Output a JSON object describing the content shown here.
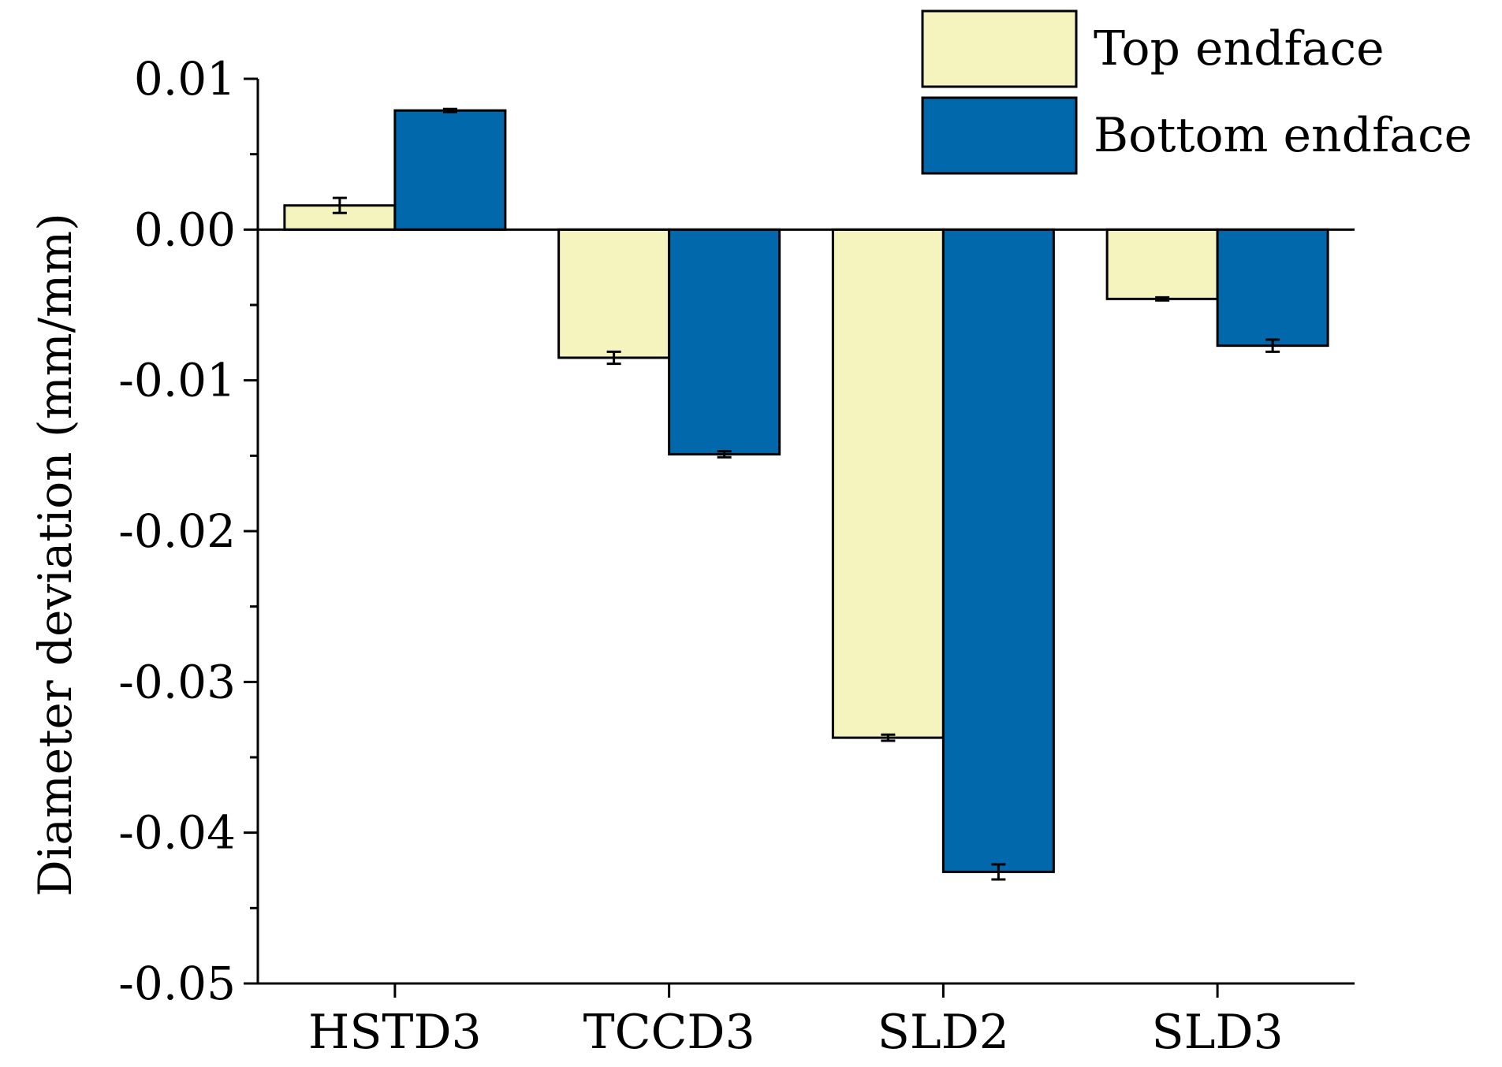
{
  "chart_data": {
    "type": "bar",
    "title": "",
    "xlabel": "",
    "ylabel": "Diameter deviation (mm/mm)",
    "ylim": [
      -0.05,
      0.01
    ],
    "yticks": [
      "0.01",
      "0.00",
      "-0.01",
      "-0.02",
      "-0.03",
      "-0.04",
      "-0.05"
    ],
    "ytick_values": [
      0.01,
      0.0,
      -0.01,
      -0.02,
      -0.03,
      -0.04,
      -0.05
    ],
    "categories": [
      "HSTD3",
      "TCCD3",
      "SLD2",
      "SLD3"
    ],
    "series": [
      {
        "name": "Top endface",
        "color": "#F5F3BE",
        "values": [
          0.0016,
          -0.0085,
          -0.0337,
          -0.0046
        ],
        "errors": [
          0.0005,
          0.0004,
          0.0002,
          0.0001
        ]
      },
      {
        "name": "Bottom endface",
        "color": "#0068AB",
        "values": [
          0.0079,
          -0.0149,
          -0.0426,
          -0.0077
        ],
        "errors": [
          0.0001,
          0.0002,
          0.0005,
          0.0004
        ]
      }
    ],
    "legend_position": "top-right",
    "grid": false
  }
}
